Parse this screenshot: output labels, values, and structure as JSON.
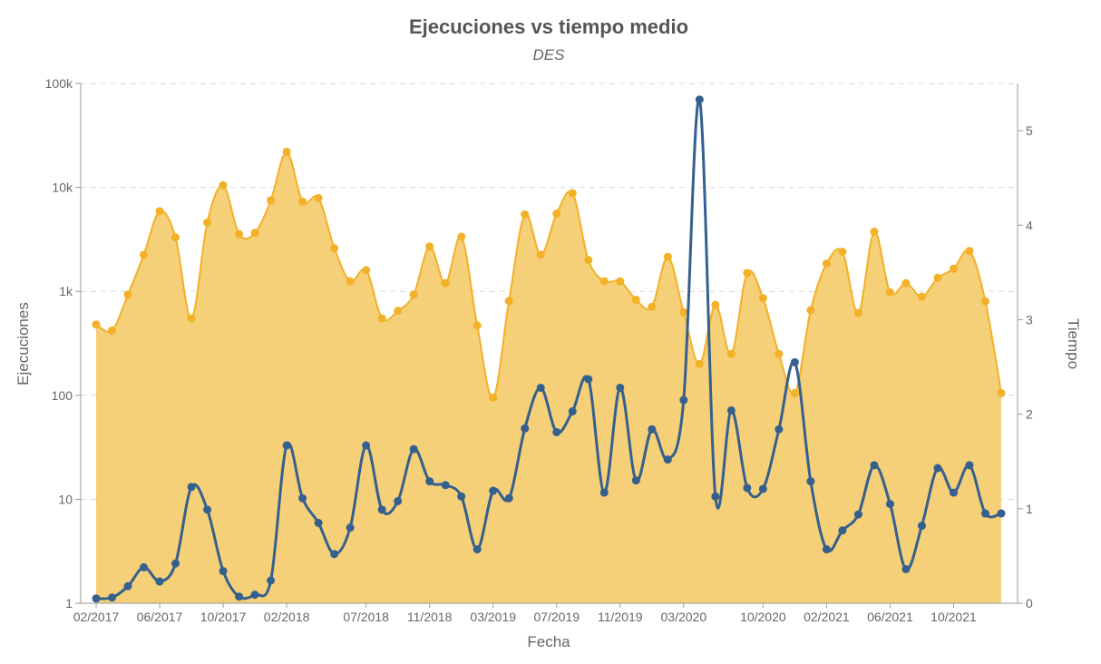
{
  "chart_data": {
    "type": "area+line",
    "title": "Ejecuciones vs tiempo medio",
    "subtitle": "DES",
    "xlabel": "Fecha",
    "ylabel_left": "Ejecuciones",
    "ylabel_right": "Tiempo",
    "y_left_scale": "log",
    "y_left_lim": [
      1,
      100000
    ],
    "y_left_ticks": [
      1,
      10,
      100,
      1000,
      10000,
      100000
    ],
    "y_left_tick_labels": [
      "1",
      "10",
      "100",
      "1k",
      "10k",
      "100k"
    ],
    "y_right_lim": [
      0,
      5.5
    ],
    "y_right_ticks": [
      0,
      1,
      2,
      3,
      4,
      5
    ],
    "y_right_tick_labels": [
      "0",
      "1",
      "2",
      "3",
      "4",
      "5"
    ],
    "x_tick_labels": [
      {
        "index": 0,
        "label": "02/2017"
      },
      {
        "index": 4,
        "label": "06/2017"
      },
      {
        "index": 8,
        "label": "10/2017"
      },
      {
        "index": 12,
        "label": "02/2018"
      },
      {
        "index": 17,
        "label": "07/2018"
      },
      {
        "index": 21,
        "label": "11/2018"
      },
      {
        "index": 25,
        "label": "03/2019"
      },
      {
        "index": 29,
        "label": "07/2019"
      },
      {
        "index": 33,
        "label": "11/2019"
      },
      {
        "index": 37,
        "label": "03/2020"
      },
      {
        "index": 42,
        "label": "10/2020"
      },
      {
        "index": 46,
        "label": "02/2021"
      },
      {
        "index": 50,
        "label": "06/2021"
      },
      {
        "index": 54,
        "label": "10/2021"
      }
    ],
    "grid": true,
    "series": [
      {
        "name": "Ejecuciones",
        "type": "area",
        "axis": "left",
        "color": "#f2b127",
        "fill": "#f6cf79",
        "values": [
          480,
          420,
          930,
          2250,
          5900,
          3300,
          550,
          4600,
          10500,
          3550,
          3650,
          7500,
          22000,
          7300,
          7900,
          2600,
          1250,
          1600,
          550,
          650,
          930,
          2700,
          1200,
          3350,
          470,
          95,
          810,
          5500,
          2250,
          5600,
          8800,
          2000,
          1250,
          1250,
          830,
          710,
          2150,
          630,
          200,
          740,
          250,
          1500,
          860,
          250,
          105,
          660,
          1850,
          2400,
          620,
          3750,
          980,
          1200,
          890,
          1350,
          1650,
          2450,
          800,
          105
        ]
      },
      {
        "name": "Tiempo",
        "type": "line",
        "axis": "right",
        "color": "#34608e",
        "values": [
          0.05,
          0.06,
          0.18,
          0.38,
          0.23,
          0.42,
          1.23,
          0.99,
          0.34,
          0.07,
          0.09,
          0.24,
          1.67,
          1.11,
          0.85,
          0.52,
          0.8,
          1.67,
          0.99,
          1.08,
          1.63,
          1.29,
          1.25,
          1.13,
          0.57,
          1.19,
          1.11,
          1.85,
          2.28,
          1.81,
          2.03,
          2.37,
          1.17,
          2.28,
          1.3,
          1.84,
          1.52,
          2.15,
          5.33,
          1.13,
          2.04,
          1.22,
          1.21,
          1.84,
          2.55,
          1.29,
          0.57,
          0.77,
          0.94,
          1.46,
          1.05,
          0.36,
          0.82,
          1.43,
          1.17,
          1.46,
          0.95,
          0.95
        ]
      }
    ]
  }
}
